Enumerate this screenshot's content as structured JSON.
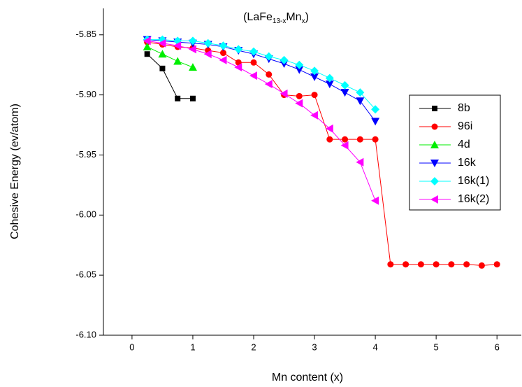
{
  "chart_data": {
    "type": "line",
    "title_parts": [
      "(LaFe",
      "13-x",
      "Mn",
      "x",
      ")"
    ],
    "x_label": "Mn  content (x)",
    "y_label": "Cohesive Energy (ev/atom)",
    "xlim": [
      -0.47,
      6.4
    ],
    "xticks": [
      0,
      1,
      2,
      3,
      4,
      5,
      6
    ],
    "ylim": [
      -6.1,
      -5.828
    ],
    "yticks": [
      {
        "value": -5.85,
        "label": "-5.85"
      },
      {
        "value": -5.9,
        "label": "-5.90"
      },
      {
        "value": -5.95,
        "label": "-5.95"
      },
      {
        "value": -6.0,
        "label": "-6.00"
      },
      {
        "value": -6.05,
        "label": "-6.05"
      },
      {
        "value": -6.1,
        "label": "-6.10"
      }
    ],
    "grid": false,
    "legend": "right",
    "series": [
      {
        "name": "8b",
        "color": "#000000",
        "marker": "square",
        "x": [
          0.25,
          0.5,
          0.75,
          1
        ],
        "values": [
          -5.866,
          -5.878,
          -5.903,
          -5.903
        ]
      },
      {
        "name": "96i",
        "color": "#ff0000",
        "marker": "circle",
        "x": [
          0.25,
          0.5,
          0.75,
          1,
          1.25,
          1.5,
          1.75,
          2,
          2.25,
          2.5,
          2.75,
          3,
          3.25,
          3.5,
          3.75,
          4,
          4.25,
          4.5,
          4.75,
          5,
          5.25,
          5.5,
          5.75,
          6
        ],
        "values": [
          -5.856,
          -5.858,
          -5.86,
          -5.861,
          -5.863,
          -5.865,
          -5.873,
          -5.873,
          -5.883,
          -5.9,
          -5.901,
          -5.9,
          -5.937,
          -5.937,
          -5.937,
          -5.937,
          -6.041,
          -6.041,
          -6.041,
          -6.041,
          -6.041,
          -6.041,
          -6.042,
          -6.041
        ]
      },
      {
        "name": "4d",
        "color": "#00ee00",
        "marker": "triangle-up",
        "x": [
          0.25,
          0.5,
          0.75,
          1
        ],
        "values": [
          -5.86,
          -5.866,
          -5.872,
          -5.877
        ]
      },
      {
        "name": "16k",
        "color": "#0000ff",
        "marker": "triangle-down",
        "x": [
          0.25,
          0.5,
          0.75,
          1,
          1.25,
          1.5,
          1.75,
          2,
          2.25,
          2.5,
          2.75,
          3,
          3.25,
          3.5,
          3.75,
          4
        ],
        "values": [
          -5.854,
          -5.855,
          -5.856,
          -5.857,
          -5.858,
          -5.86,
          -5.863,
          -5.866,
          -5.87,
          -5.874,
          -5.879,
          -5.885,
          -5.891,
          -5.898,
          -5.905,
          -5.922
        ]
      },
      {
        "name": "16k(1)",
        "color": "#00ffff",
        "marker": "diamond",
        "x": [
          0.25,
          0.5,
          0.75,
          1,
          1.25,
          1.5,
          1.75,
          2,
          2.25,
          2.5,
          2.75,
          3,
          3.25,
          3.5,
          3.75,
          4
        ],
        "values": [
          -5.854,
          -5.854,
          -5.855,
          -5.855,
          -5.857,
          -5.859,
          -5.862,
          -5.864,
          -5.868,
          -5.871,
          -5.875,
          -5.88,
          -5.886,
          -5.892,
          -5.898,
          -5.912
        ]
      },
      {
        "name": "16k(2)",
        "color": "#ff00ff",
        "marker": "triangle-left",
        "x": [
          0.25,
          0.5,
          0.75,
          1,
          1.25,
          1.5,
          1.75,
          2,
          2.25,
          2.5,
          2.75,
          3,
          3.25,
          3.5,
          3.75,
          4
        ],
        "values": [
          -5.855,
          -5.857,
          -5.859,
          -5.862,
          -5.866,
          -5.871,
          -5.877,
          -5.884,
          -5.891,
          -5.899,
          -5.907,
          -5.917,
          -5.928,
          -5.942,
          -5.956,
          -5.988
        ]
      }
    ]
  }
}
